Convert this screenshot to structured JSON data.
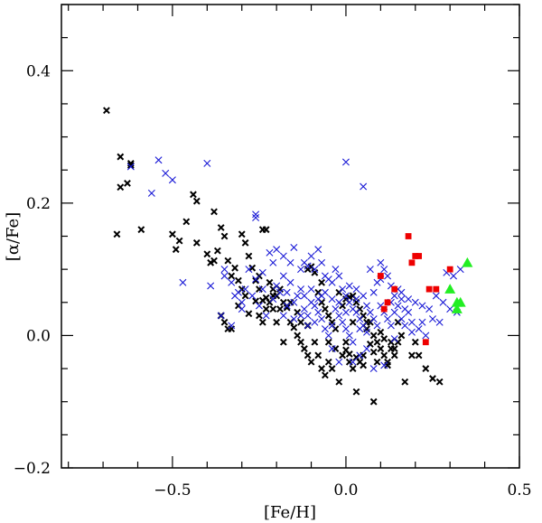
{
  "chart_data": {
    "type": "scatter",
    "title": "",
    "xlabel": "[Fe/H]",
    "ylabel": "[α/Fe]",
    "xlim": [
      -0.82,
      0.5
    ],
    "ylim": [
      -0.2,
      0.5
    ],
    "x_ticks": [
      -0.5,
      0.0,
      0.5
    ],
    "x_tick_labels": [
      "−0.5",
      "0.0",
      "0.5"
    ],
    "y_ticks": [
      -0.2,
      0.0,
      0.2,
      0.4
    ],
    "y_tick_labels": [
      "−0.2",
      "0.0",
      "0.2",
      "0.4"
    ],
    "grid": false,
    "colors": {
      "black": "#000000",
      "blue": "#1a1ad6",
      "red": "#ee0000",
      "green": "#22ee22"
    },
    "series": [
      {
        "name": "black crosses",
        "marker": "x",
        "color": "black",
        "points": [
          [
            -0.69,
            0.34
          ],
          [
            -0.65,
            0.27
          ],
          [
            -0.66,
            0.153
          ],
          [
            -0.65,
            0.224
          ],
          [
            -0.63,
            0.23
          ],
          [
            -0.62,
            0.26
          ],
          [
            -0.62,
            0.257
          ],
          [
            -0.59,
            0.16
          ],
          [
            -0.5,
            0.153
          ],
          [
            -0.49,
            0.13
          ],
          [
            -0.48,
            0.143
          ],
          [
            -0.46,
            0.172
          ],
          [
            -0.44,
            0.213
          ],
          [
            -0.43,
            0.203
          ],
          [
            -0.38,
            0.187
          ],
          [
            -0.4,
            0.123
          ],
          [
            -0.39,
            0.11
          ],
          [
            -0.38,
            0.113
          ],
          [
            -0.37,
            0.128
          ],
          [
            -0.36,
            0.163
          ],
          [
            -0.35,
            0.15
          ],
          [
            -0.34,
            0.113
          ],
          [
            -0.33,
            0.09
          ],
          [
            -0.32,
            0.102
          ],
          [
            -0.31,
            0.083
          ],
          [
            -0.3,
            0.07
          ],
          [
            -0.3,
            0.153
          ],
          [
            -0.29,
            0.14
          ],
          [
            -0.28,
            0.12
          ],
          [
            -0.27,
            0.102
          ],
          [
            -0.26,
            0.083
          ],
          [
            -0.25,
            0.09
          ],
          [
            -0.24,
            0.16
          ],
          [
            -0.23,
            0.16
          ],
          [
            -0.25,
            0.07
          ],
          [
            -0.24,
            0.053
          ],
          [
            -0.23,
            0.057
          ],
          [
            -0.22,
            0.05
          ],
          [
            -0.21,
            0.04
          ],
          [
            -0.2,
            0.02
          ],
          [
            -0.19,
            0.04
          ],
          [
            -0.36,
            0.03
          ],
          [
            -0.35,
            0.02
          ],
          [
            -0.33,
            0.01
          ],
          [
            -0.22,
            0.08
          ],
          [
            -0.21,
            0.07
          ],
          [
            -0.2,
            0.06
          ],
          [
            -0.18,
            0.05
          ],
          [
            -0.17,
            0.042
          ],
          [
            -0.16,
            0.02
          ],
          [
            -0.15,
            0.012
          ],
          [
            -0.14,
            0.0
          ],
          [
            -0.13,
            -0.01
          ],
          [
            -0.12,
            -0.02
          ],
          [
            -0.11,
            -0.03
          ],
          [
            -0.1,
            -0.04
          ],
          [
            -0.09,
            -0.01
          ],
          [
            -0.08,
            -0.03
          ],
          [
            -0.07,
            -0.05
          ],
          [
            -0.06,
            -0.06
          ],
          [
            -0.05,
            -0.04
          ],
          [
            -0.04,
            -0.05
          ],
          [
            -0.03,
            -0.02
          ],
          [
            -0.02,
            -0.07
          ],
          [
            -0.01,
            -0.03
          ],
          [
            0.0,
            -0.01
          ],
          [
            0.01,
            -0.04
          ],
          [
            0.02,
            -0.05
          ],
          [
            0.03,
            -0.085
          ],
          [
            0.04,
            -0.04
          ],
          [
            0.05,
            -0.03
          ],
          [
            0.06,
            0.01
          ],
          [
            0.07,
            0.02
          ],
          [
            0.08,
            0.0
          ],
          [
            0.09,
            -0.01
          ],
          [
            0.1,
            -0.02
          ],
          [
            0.11,
            -0.03
          ],
          [
            0.12,
            -0.04
          ],
          [
            0.13,
            -0.02
          ],
          [
            0.14,
            -0.03
          ],
          [
            0.15,
            -0.01
          ],
          [
            0.16,
            0.0
          ],
          [
            0.17,
            -0.07
          ],
          [
            0.19,
            -0.03
          ],
          [
            0.21,
            -0.03
          ],
          [
            0.23,
            -0.05
          ],
          [
            0.25,
            -0.065
          ],
          [
            0.27,
            -0.07
          ],
          [
            0.08,
            -0.1
          ],
          [
            -0.11,
            0.1
          ],
          [
            -0.1,
            0.104
          ],
          [
            -0.09,
            0.095
          ],
          [
            -0.08,
            0.065
          ],
          [
            -0.07,
            0.05
          ],
          [
            -0.06,
            0.04
          ],
          [
            -0.05,
            0.03
          ],
          [
            -0.04,
            0.02
          ],
          [
            -0.03,
            0.01
          ],
          [
            -0.02,
            0.065
          ],
          [
            -0.01,
            0.045
          ],
          [
            0.0,
            0.055
          ],
          [
            0.01,
            0.058
          ],
          [
            0.02,
            0.06
          ],
          [
            0.03,
            0.05
          ],
          [
            0.04,
            0.04
          ],
          [
            0.05,
            0.03
          ],
          [
            0.06,
            0.02
          ],
          [
            0.07,
            -0.013
          ],
          [
            0.08,
            -0.025
          ],
          [
            0.13,
            -0.01
          ],
          [
            0.14,
            -0.02
          ],
          [
            0.11,
            -0.005
          ],
          [
            0.09,
            -0.04
          ],
          [
            0.02,
            0.02
          ],
          [
            -0.05,
            -0.01
          ],
          [
            -0.14,
            0.035
          ],
          [
            -0.16,
            0.05
          ],
          [
            -0.26,
            0.052
          ],
          [
            -0.28,
            0.033
          ],
          [
            -0.31,
            0.045
          ],
          [
            -0.29,
            0.06
          ],
          [
            -0.43,
            0.14
          ],
          [
            -0.34,
            0.01
          ],
          [
            -0.13,
            0.02
          ],
          [
            -0.11,
            0.015
          ],
          [
            0.0,
            -0.022
          ],
          [
            0.01,
            -0.028
          ],
          [
            0.03,
            -0.033
          ],
          [
            0.05,
            -0.045
          ],
          [
            0.12,
            -0.045
          ],
          [
            0.1,
            0.005
          ],
          [
            0.15,
            0.02
          ],
          [
            0.2,
            -0.01
          ],
          [
            -0.19,
            0.07
          ],
          [
            -0.21,
            0.06
          ],
          [
            -0.23,
            0.04
          ],
          [
            -0.24,
            0.02
          ],
          [
            -0.25,
            0.03
          ],
          [
            -0.18,
            -0.01
          ],
          [
            -0.07,
            0.08
          ]
        ]
      },
      {
        "name": "blue crosses",
        "marker": "x",
        "color": "blue",
        "points": [
          [
            -0.62,
            0.255
          ],
          [
            -0.54,
            0.265
          ],
          [
            -0.52,
            0.245
          ],
          [
            -0.56,
            0.215
          ],
          [
            -0.5,
            0.235
          ],
          [
            -0.4,
            0.26
          ],
          [
            -0.47,
            0.08
          ],
          [
            -0.39,
            0.075
          ],
          [
            -0.35,
            0.1
          ],
          [
            -0.32,
            0.06
          ],
          [
            -0.3,
            0.04
          ],
          [
            -0.33,
            0.015
          ],
          [
            -0.36,
            0.03
          ],
          [
            -0.26,
            0.183
          ],
          [
            -0.26,
            0.178
          ],
          [
            -0.22,
            0.125
          ],
          [
            -0.21,
            0.11
          ],
          [
            -0.2,
            0.13
          ],
          [
            -0.18,
            0.12
          ],
          [
            -0.16,
            0.11
          ],
          [
            -0.15,
            0.133
          ],
          [
            -0.13,
            0.1
          ],
          [
            -0.12,
            0.11
          ],
          [
            -0.11,
            0.105
          ],
          [
            -0.1,
            0.12
          ],
          [
            -0.09,
            0.1
          ],
          [
            -0.08,
            0.13
          ],
          [
            -0.07,
            0.11
          ],
          [
            -0.06,
            0.09
          ],
          [
            -0.05,
            0.085
          ],
          [
            -0.04,
            0.08
          ],
          [
            -0.03,
            0.1
          ],
          [
            -0.02,
            0.09
          ],
          [
            0.0,
            0.262
          ],
          [
            0.05,
            0.225
          ],
          [
            0.07,
            0.1
          ],
          [
            0.09,
            0.08
          ],
          [
            0.1,
            0.11
          ],
          [
            0.11,
            0.1
          ],
          [
            0.12,
            0.09
          ],
          [
            0.13,
            0.075
          ],
          [
            0.14,
            0.06
          ],
          [
            0.15,
            0.07
          ],
          [
            0.16,
            0.065
          ],
          [
            0.18,
            0.055
          ],
          [
            0.2,
            0.05
          ],
          [
            0.22,
            0.045
          ],
          [
            0.24,
            0.04
          ],
          [
            0.26,
            0.06
          ],
          [
            0.28,
            0.05
          ],
          [
            0.3,
            0.04
          ],
          [
            0.32,
            0.035
          ],
          [
            0.29,
            0.095
          ],
          [
            0.31,
            0.09
          ],
          [
            0.33,
            0.1
          ],
          [
            0.25,
            0.025
          ],
          [
            0.27,
            0.02
          ],
          [
            0.23,
            0.0
          ],
          [
            0.21,
            0.01
          ],
          [
            -0.29,
            0.07
          ],
          [
            -0.27,
            0.06
          ],
          [
            -0.25,
            0.045
          ],
          [
            -0.23,
            0.03
          ],
          [
            -0.21,
            0.055
          ],
          [
            -0.19,
            0.065
          ],
          [
            -0.17,
            0.045
          ],
          [
            -0.15,
            0.05
          ],
          [
            -0.14,
            0.06
          ],
          [
            -0.12,
            0.04
          ],
          [
            -0.11,
            0.03
          ],
          [
            -0.1,
            0.05
          ],
          [
            -0.09,
            0.02
          ],
          [
            -0.08,
            0.035
          ],
          [
            -0.07,
            0.025
          ],
          [
            -0.06,
            0.01
          ],
          [
            -0.05,
            0.0
          ],
          [
            -0.04,
            0.015
          ],
          [
            -0.03,
            0.04
          ],
          [
            -0.02,
            0.03
          ],
          [
            -0.01,
            0.02
          ],
          [
            0.0,
            0.01
          ],
          [
            0.01,
            0.0
          ],
          [
            0.02,
            -0.01
          ],
          [
            0.03,
            0.035
          ],
          [
            0.04,
            0.025
          ],
          [
            0.05,
            0.015
          ],
          [
            0.06,
            0.045
          ],
          [
            0.07,
            0.035
          ],
          [
            0.08,
            0.025
          ],
          [
            0.09,
            0.015
          ],
          [
            0.1,
            0.045
          ],
          [
            0.11,
            0.035
          ],
          [
            0.12,
            0.025
          ],
          [
            0.13,
            0.015
          ],
          [
            0.14,
            0.035
          ],
          [
            0.15,
            0.045
          ],
          [
            0.16,
            0.025
          ],
          [
            0.17,
            0.015
          ],
          [
            0.18,
            0.035
          ],
          [
            0.19,
            0.02
          ],
          [
            -0.01,
            0.07
          ],
          [
            0.0,
            0.06
          ],
          [
            0.01,
            0.05
          ],
          [
            0.02,
            0.04
          ],
          [
            -0.13,
            0.07
          ],
          [
            -0.12,
            0.06
          ],
          [
            -0.1,
            0.07
          ],
          [
            -0.08,
            0.055
          ],
          [
            -0.06,
            0.065
          ],
          [
            -0.04,
            0.055
          ],
          [
            -0.02,
            0.05
          ],
          [
            0.03,
            0.07
          ],
          [
            0.05,
            0.06
          ],
          [
            -0.35,
            0.09
          ],
          [
            -0.33,
            0.08
          ],
          [
            -0.31,
            0.065
          ],
          [
            -0.3,
            0.05
          ],
          [
            0.06,
            -0.02
          ],
          [
            0.04,
            -0.03
          ],
          [
            0.02,
            -0.04
          ],
          [
            -0.02,
            -0.04
          ],
          [
            -0.04,
            -0.02
          ],
          [
            0.08,
            -0.05
          ],
          [
            0.1,
            0.085
          ],
          [
            0.13,
            0.05
          ],
          [
            0.17,
            0.04
          ],
          [
            0.19,
            0.005
          ],
          [
            0.22,
            0.02
          ],
          [
            -0.16,
            0.08
          ],
          [
            -0.18,
            0.09
          ],
          [
            -0.2,
            0.075
          ],
          [
            -0.24,
            0.095
          ],
          [
            -0.09,
            0.045
          ],
          [
            -0.07,
            0.06
          ],
          [
            0.0,
            0.035
          ],
          [
            0.01,
            0.075
          ],
          [
            0.03,
            0.055
          ],
          [
            0.04,
            0.01
          ],
          [
            0.06,
            0.005
          ],
          [
            -0.11,
            0.015
          ],
          [
            -0.13,
            0.03
          ],
          [
            -0.15,
            0.025
          ],
          [
            -0.17,
            0.065
          ],
          [
            -0.18,
            0.03
          ],
          [
            -0.24,
            0.07
          ],
          [
            -0.26,
            0.085
          ],
          [
            -0.28,
            0.1
          ],
          [
            0.11,
            -0.045
          ],
          [
            0.14,
            -0.005
          ],
          [
            0.16,
            0.055
          ],
          [
            0.08,
            0.065
          ]
        ]
      },
      {
        "name": "red squares",
        "marker": "square",
        "color": "red",
        "points": [
          [
            0.18,
            0.15
          ],
          [
            0.19,
            0.11
          ],
          [
            0.2,
            0.12
          ],
          [
            0.21,
            0.12
          ],
          [
            0.1,
            0.09
          ],
          [
            0.12,
            0.05
          ],
          [
            0.11,
            0.04
          ],
          [
            0.14,
            0.07
          ],
          [
            0.24,
            0.07
          ],
          [
            0.26,
            0.07
          ],
          [
            0.3,
            0.1
          ],
          [
            0.23,
            -0.01
          ]
        ]
      },
      {
        "name": "green triangles",
        "marker": "triangle",
        "color": "green",
        "points": [
          [
            0.35,
            0.11
          ],
          [
            0.3,
            0.07
          ],
          [
            0.32,
            0.05
          ],
          [
            0.33,
            0.05
          ],
          [
            0.32,
            0.04
          ]
        ]
      }
    ]
  }
}
